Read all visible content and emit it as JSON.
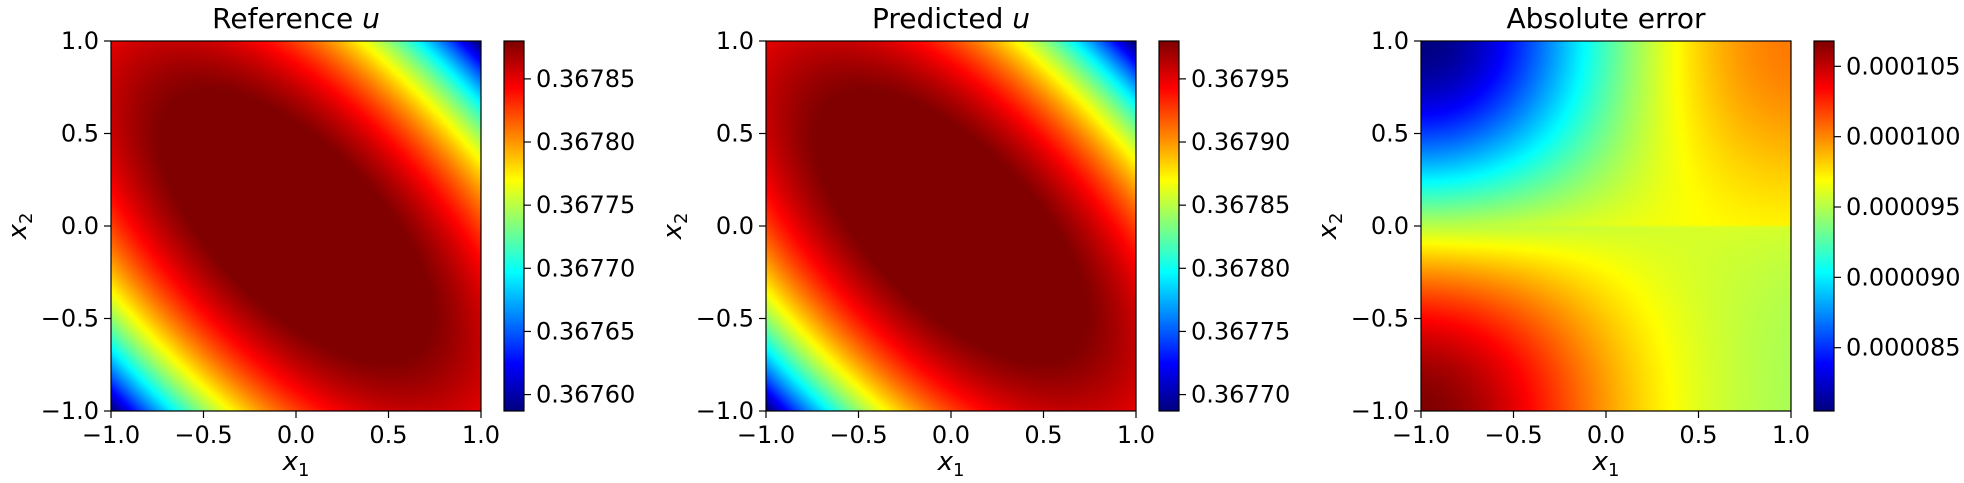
{
  "chart_data": [
    {
      "type": "heatmap",
      "title": "Reference u",
      "title_plain": "Reference ",
      "title_var": "u",
      "xlabel": "x1",
      "ylabel": "x2",
      "xlim": [
        -1.0,
        1.0
      ],
      "ylim": [
        -1.0,
        1.0
      ],
      "xticks": [
        "−1.0",
        "−0.5",
        "0.0",
        "0.5",
        "1.0"
      ],
      "yticks": [
        "−1.0",
        "−0.5",
        "0.0",
        "0.5",
        "1.0"
      ],
      "colormap": "jet",
      "colorbar": {
        "range": [
          0.367587,
          0.36788
        ],
        "ticks": [
          0.3676,
          0.36765,
          0.3677,
          0.36775,
          0.3678,
          0.36785
        ],
        "tick_labels": [
          "0.36760",
          "0.36765",
          "0.36770",
          "0.36775",
          "0.36780",
          "0.36785"
        ]
      },
      "pattern": {
        "description": "value peaks along diagonal band x1+x2 ≈ 0, falls toward corners (-1,-1) and (1,1)",
        "corner_values": {
          "top_left": 0.36788,
          "top_right": 0.36759,
          "bottom_left": 0.36762,
          "bottom_right": 0.36788
        }
      }
    },
    {
      "type": "heatmap",
      "title": "Predicted u",
      "title_plain": "Predicted ",
      "title_var": "u",
      "xlabel": "x1",
      "ylabel": "x2",
      "xlim": [
        -1.0,
        1.0
      ],
      "ylim": [
        -1.0,
        1.0
      ],
      "xticks": [
        "−1.0",
        "−0.5",
        "0.0",
        "0.5",
        "1.0"
      ],
      "yticks": [
        "−1.0",
        "−0.5",
        "0.0",
        "0.5",
        "1.0"
      ],
      "colormap": "jet",
      "colorbar": {
        "range": [
          0.367687,
          0.36798
        ],
        "ticks": [
          0.3677,
          0.36775,
          0.3678,
          0.36785,
          0.3679,
          0.36795
        ],
        "tick_labels": [
          "0.36770",
          "0.36775",
          "0.36780",
          "0.36785",
          "0.36790",
          "0.36795"
        ]
      },
      "pattern": {
        "description": "value peaks along diagonal band x1+x2 ≈ 0, falls toward corners (-1,-1) and (1,1)",
        "corner_values": {
          "top_left": 0.36798,
          "top_right": 0.36769,
          "bottom_left": 0.36772,
          "bottom_right": 0.36798
        }
      }
    },
    {
      "type": "heatmap",
      "title": "Absolute error",
      "title_plain": "Absolute error",
      "title_var": "",
      "xlabel": "x1",
      "ylabel": "x2",
      "xlim": [
        -1.0,
        1.0
      ],
      "ylim": [
        -1.0,
        1.0
      ],
      "xticks": [
        "−1.0",
        "−0.5",
        "0.0",
        "0.5",
        "1.0"
      ],
      "yticks": [
        "−1.0",
        "−0.5",
        "0.0",
        "0.5",
        "1.0"
      ],
      "colormap": "jet",
      "colorbar": {
        "range": [
          8.05e-05,
          0.0001068
        ],
        "ticks": [
          8.5e-05,
          9e-05,
          9.5e-05,
          0.0001,
          0.000105
        ],
        "tick_labels": [
          "0.000085",
          "0.000090",
          "0.000095",
          "0.000100",
          "0.000105"
        ]
      },
      "pattern": {
        "description": "minimum near top-left corner, maximum near bottom-left corner, mid values across right half",
        "corner_values": {
          "top_left": 8.1e-05,
          "top_right": 0.0001,
          "bottom_left": 0.000106,
          "bottom_right": 9.6e-05
        }
      }
    }
  ]
}
